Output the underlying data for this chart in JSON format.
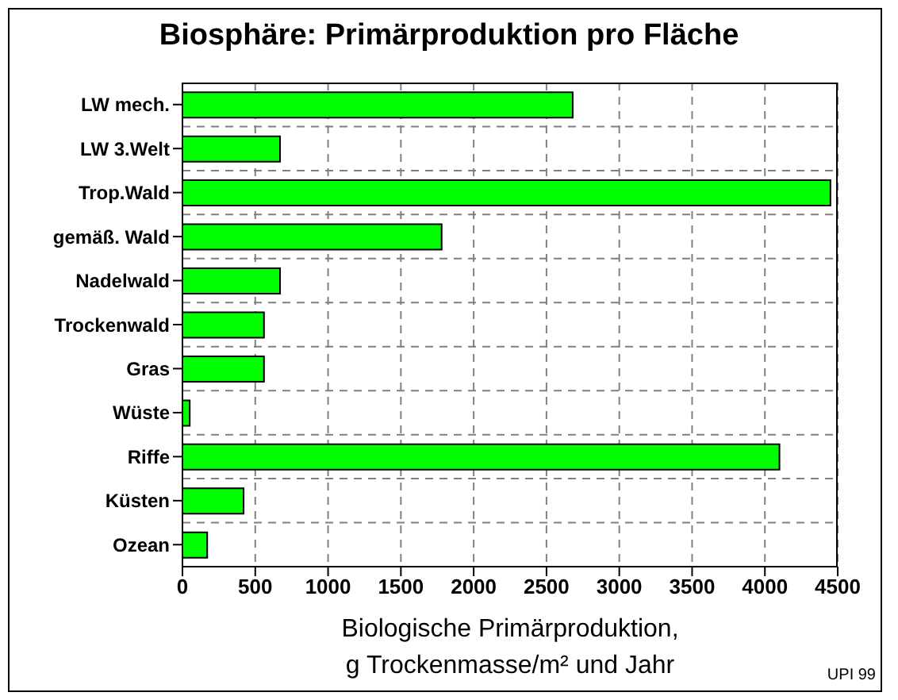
{
  "chart_data": {
    "type": "bar",
    "orientation": "horizontal",
    "title": "Biosphäre: Primärproduktion pro Fläche",
    "xlabel": "Biologische Primärproduktion,\ng Trockenmasse/m² und Jahr",
    "categories": [
      "LW mech.",
      "LW 3.Welt",
      "Trop.Wald",
      "gemäß. Wald",
      "Nadelwald",
      "Trockenwald",
      "Gras",
      "Wüste",
      "Riffe",
      "Küsten",
      "Ozean"
    ],
    "values": [
      2680,
      670,
      4450,
      1780,
      670,
      560,
      560,
      50,
      4100,
      420,
      170
    ],
    "color": "#00ff00",
    "xlim": [
      0,
      4500
    ],
    "xticks": [
      0,
      500,
      1000,
      1500,
      2000,
      2500,
      3000,
      3500,
      4000,
      4500
    ],
    "grid": true,
    "annotations": [
      "UPI 99"
    ]
  }
}
